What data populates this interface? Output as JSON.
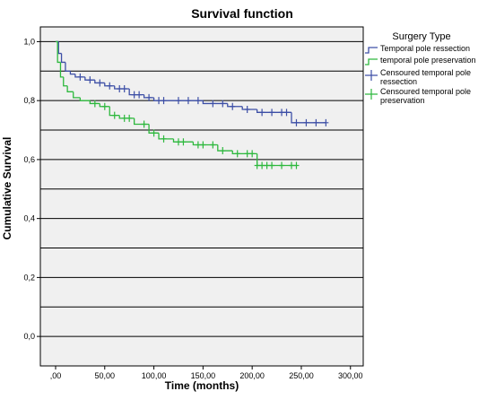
{
  "chart_data": {
    "type": "step",
    "title": "Survival function",
    "x_label": "Time (months)",
    "y_label": "Cumulative Survival",
    "legend_title": "Surgery Type",
    "xlim": [
      -15.5,
      313
    ],
    "ylim": [
      -0.1,
      1.05
    ],
    "xticks": [
      {
        "value": 0,
        "label": ",00"
      },
      {
        "value": 50,
        "label": "50,00"
      },
      {
        "value": 100,
        "label": "100,00"
      },
      {
        "value": 150,
        "label": "150,00"
      },
      {
        "value": 200,
        "label": "200,00"
      },
      {
        "value": 250,
        "label": "250,00"
      },
      {
        "value": 300,
        "label": "300,00"
      }
    ],
    "yticks": [
      {
        "value": 0,
        "label": "0,0"
      },
      {
        "value": 0.2,
        "label": "0,2"
      },
      {
        "value": 0.4,
        "label": "0,4"
      },
      {
        "value": 0.6,
        "label": "0,6"
      },
      {
        "value": 0.8,
        "label": "0,8"
      },
      {
        "value": 1,
        "label": "1,0"
      }
    ],
    "ygrid": [
      -0.1,
      0,
      0.1,
      0.2,
      0.3,
      0.4,
      0.5,
      0.6,
      0.7,
      0.8,
      0.9,
      1
    ],
    "series": [
      {
        "name": "Temporal pole ressection",
        "kind": "step",
        "color": "#3d4fa6",
        "x": [
          0,
          3,
          6,
          10,
          15,
          20,
          30,
          40,
          50,
          60,
          75,
          90,
          100,
          120,
          150,
          175,
          190,
          205,
          240,
          275
        ],
        "values": [
          1.0,
          0.96,
          0.93,
          0.9,
          0.89,
          0.88,
          0.87,
          0.86,
          0.85,
          0.84,
          0.82,
          0.81,
          0.8,
          0.8,
          0.79,
          0.78,
          0.77,
          0.76,
          0.725,
          0.725
        ]
      },
      {
        "name": "temporal pole preservation",
        "kind": "step",
        "color": "#2db83d",
        "x": [
          0,
          2,
          5,
          8,
          12,
          18,
          25,
          35,
          45,
          55,
          65,
          80,
          95,
          105,
          120,
          140,
          165,
          180,
          205,
          245
        ],
        "values": [
          1.0,
          0.93,
          0.88,
          0.85,
          0.83,
          0.81,
          0.8,
          0.79,
          0.78,
          0.75,
          0.74,
          0.72,
          0.69,
          0.67,
          0.66,
          0.65,
          0.63,
          0.62,
          0.58,
          0.58
        ]
      },
      {
        "name": "Censoured temporal pole ressection",
        "kind": "censor",
        "color": "#3d4fa6",
        "x": [
          25,
          35,
          45,
          55,
          65,
          70,
          80,
          85,
          95,
          105,
          110,
          125,
          135,
          145,
          160,
          170,
          180,
          195,
          210,
          220,
          230,
          235,
          245,
          255,
          265,
          275
        ],
        "values": [
          0.88,
          0.87,
          0.86,
          0.85,
          0.84,
          0.84,
          0.82,
          0.82,
          0.81,
          0.8,
          0.8,
          0.8,
          0.8,
          0.8,
          0.79,
          0.79,
          0.78,
          0.77,
          0.76,
          0.76,
          0.76,
          0.76,
          0.725,
          0.725,
          0.725,
          0.725
        ]
      },
      {
        "name": "Censoured temporal pole preservation",
        "kind": "censor",
        "color": "#2db83d",
        "x": [
          40,
          50,
          60,
          70,
          75,
          90,
          100,
          110,
          125,
          130,
          145,
          150,
          160,
          170,
          185,
          195,
          200,
          205,
          210,
          215,
          220,
          230,
          240,
          245
        ],
        "values": [
          0.79,
          0.78,
          0.75,
          0.74,
          0.74,
          0.72,
          0.69,
          0.67,
          0.66,
          0.66,
          0.65,
          0.65,
          0.65,
          0.63,
          0.62,
          0.62,
          0.62,
          0.58,
          0.58,
          0.58,
          0.58,
          0.58,
          0.58,
          0.58
        ]
      }
    ]
  }
}
